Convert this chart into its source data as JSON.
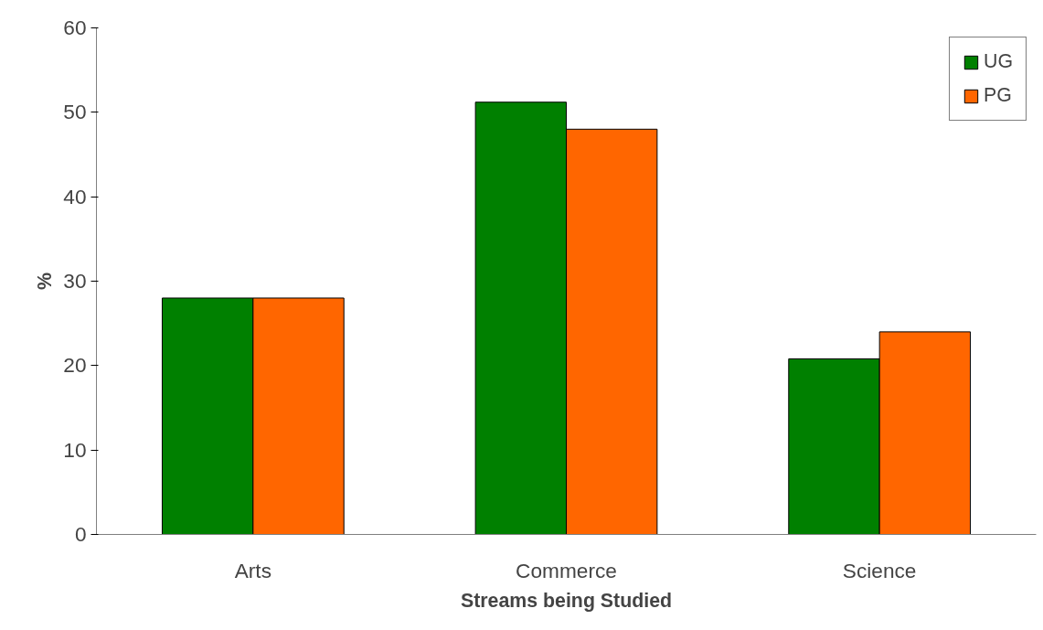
{
  "chart_data": {
    "type": "bar",
    "xlabel": "Streams being Studied",
    "ylabel": "%",
    "categories": [
      "Arts",
      "Commerce",
      "Science"
    ],
    "series": [
      {
        "name": "UG",
        "color": "#008000",
        "values": [
          28,
          51.2,
          20.8
        ]
      },
      {
        "name": "PG",
        "color": "#ff6600",
        "values": [
          28,
          48,
          24
        ]
      }
    ],
    "ylim": [
      0,
      60
    ],
    "yticks": [
      0,
      10,
      20,
      30,
      40,
      50,
      60
    ],
    "grid": false,
    "legend": "top right"
  }
}
